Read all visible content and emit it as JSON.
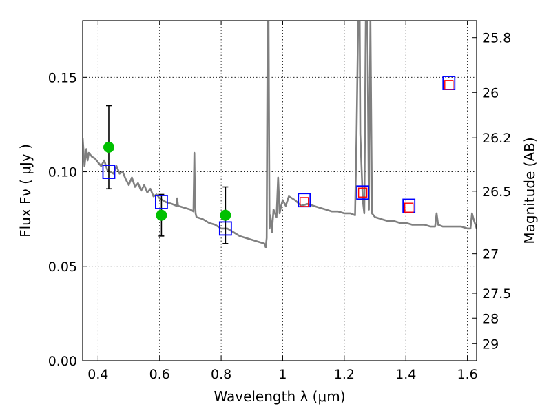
{
  "chart_data": {
    "type": "scatter",
    "xlabel": "Wavelength  λ (μm)",
    "ylabel_left": "Flux  Fν  ( μJy )",
    "ylabel_right": "Magnitude (AB)",
    "xlim": [
      0.35,
      1.63
    ],
    "ylim": [
      0.0,
      0.18
    ],
    "grid": true,
    "x_ticks": [
      0.4,
      0.6,
      0.8,
      1.0,
      1.2,
      1.4,
      1.6
    ],
    "x_tick_labels": [
      "0.4",
      "0.6",
      "0.8",
      "1",
      "1.2",
      "1.4",
      "1.6"
    ],
    "y_ticks": [
      0.0,
      0.05,
      0.1,
      0.15
    ],
    "y_tick_labels": [
      "0.00",
      "0.05",
      "0.10",
      "0.15"
    ],
    "right_ticks": [
      {
        "label": "25.8",
        "flux": 0.171
      },
      {
        "label": "26",
        "flux": 0.142
      },
      {
        "label": "26.2",
        "flux": 0.118
      },
      {
        "label": "26.5",
        "flux": 0.0897
      },
      {
        "label": "27",
        "flux": 0.0566
      },
      {
        "label": "27.5",
        "flux": 0.0357
      },
      {
        "label": "28",
        "flux": 0.0225
      },
      {
        "label": "29",
        "flux": 0.009
      }
    ],
    "series": [
      {
        "kind": "observed",
        "color": "#00c000",
        "points": [
          {
            "x": 0.435,
            "y": 0.113,
            "err_low": 0.091,
            "err_high": 0.135
          },
          {
            "x": 0.606,
            "y": 0.077,
            "err_low": 0.066,
            "err_high": 0.088
          },
          {
            "x": 0.814,
            "y": 0.077,
            "err_low": 0.062,
            "err_high": 0.092
          }
        ]
      },
      {
        "kind": "model-blue",
        "color": "#0000ff",
        "points": [
          {
            "x": 0.435,
            "y": 0.1
          },
          {
            "x": 0.606,
            "y": 0.084
          },
          {
            "x": 0.814,
            "y": 0.07
          },
          {
            "x": 1.07,
            "y": 0.085
          },
          {
            "x": 1.26,
            "y": 0.089
          },
          {
            "x": 1.41,
            "y": 0.082
          },
          {
            "x": 1.54,
            "y": 0.147
          }
        ]
      },
      {
        "kind": "model-red",
        "color": "#ff0000",
        "points": [
          {
            "x": 1.07,
            "y": 0.084
          },
          {
            "x": 1.26,
            "y": 0.089
          },
          {
            "x": 1.41,
            "y": 0.081
          },
          {
            "x": 1.54,
            "y": 0.146
          }
        ]
      },
      {
        "kind": "sed-template",
        "color": "#808080",
        "x": [
          0.35,
          0.356,
          0.362,
          0.366,
          0.37,
          0.38,
          0.39,
          0.4,
          0.41,
          0.42,
          0.43,
          0.44,
          0.45,
          0.46,
          0.47,
          0.48,
          0.49,
          0.5,
          0.51,
          0.52,
          0.53,
          0.54,
          0.55,
          0.56,
          0.57,
          0.58,
          0.59,
          0.6,
          0.62,
          0.64,
          0.655,
          0.657,
          0.66,
          0.68,
          0.7,
          0.71,
          0.713,
          0.715,
          0.717,
          0.72,
          0.74,
          0.76,
          0.78,
          0.8,
          0.82,
          0.84,
          0.86,
          0.88,
          0.9,
          0.92,
          0.94,
          0.945,
          0.948,
          0.951,
          0.954,
          0.957,
          0.96,
          0.965,
          0.97,
          0.98,
          0.985,
          0.99,
          0.995,
          1.0,
          1.01,
          1.02,
          1.04,
          1.06,
          1.08,
          1.1,
          1.12,
          1.14,
          1.16,
          1.18,
          1.2,
          1.22,
          1.235,
          1.24,
          1.245,
          1.25,
          1.252,
          1.26,
          1.265,
          1.27,
          1.275,
          1.28,
          1.285,
          1.29,
          1.3,
          1.32,
          1.34,
          1.36,
          1.38,
          1.4,
          1.42,
          1.44,
          1.46,
          1.48,
          1.495,
          1.5,
          1.505,
          1.52,
          1.54,
          1.56,
          1.58,
          1.6,
          1.61,
          1.615,
          1.62,
          1.63
        ],
        "y": [
          0.118,
          0.103,
          0.112,
          0.106,
          0.11,
          0.108,
          0.107,
          0.105,
          0.103,
          0.106,
          0.101,
          0.1,
          0.099,
          0.103,
          0.099,
          0.1,
          0.096,
          0.093,
          0.097,
          0.092,
          0.094,
          0.09,
          0.093,
          0.089,
          0.091,
          0.087,
          0.088,
          0.086,
          0.084,
          0.083,
          0.082,
          0.086,
          0.082,
          0.081,
          0.08,
          0.079,
          0.11,
          0.085,
          0.078,
          0.076,
          0.075,
          0.073,
          0.072,
          0.07,
          0.07,
          0.068,
          0.066,
          0.065,
          0.064,
          0.063,
          0.062,
          0.06,
          0.065,
          0.18,
          0.18,
          0.07,
          0.077,
          0.068,
          0.08,
          0.076,
          0.097,
          0.078,
          0.082,
          0.085,
          0.082,
          0.087,
          0.085,
          0.082,
          0.083,
          0.082,
          0.081,
          0.08,
          0.079,
          0.079,
          0.078,
          0.078,
          0.077,
          0.12,
          0.18,
          0.18,
          0.12,
          0.085,
          0.078,
          0.18,
          0.18,
          0.08,
          0.18,
          0.078,
          0.076,
          0.075,
          0.074,
          0.074,
          0.073,
          0.073,
          0.072,
          0.072,
          0.072,
          0.071,
          0.071,
          0.078,
          0.072,
          0.071,
          0.071,
          0.071,
          0.071,
          0.07,
          0.07,
          0.078,
          0.075,
          0.07
        ]
      }
    ]
  }
}
